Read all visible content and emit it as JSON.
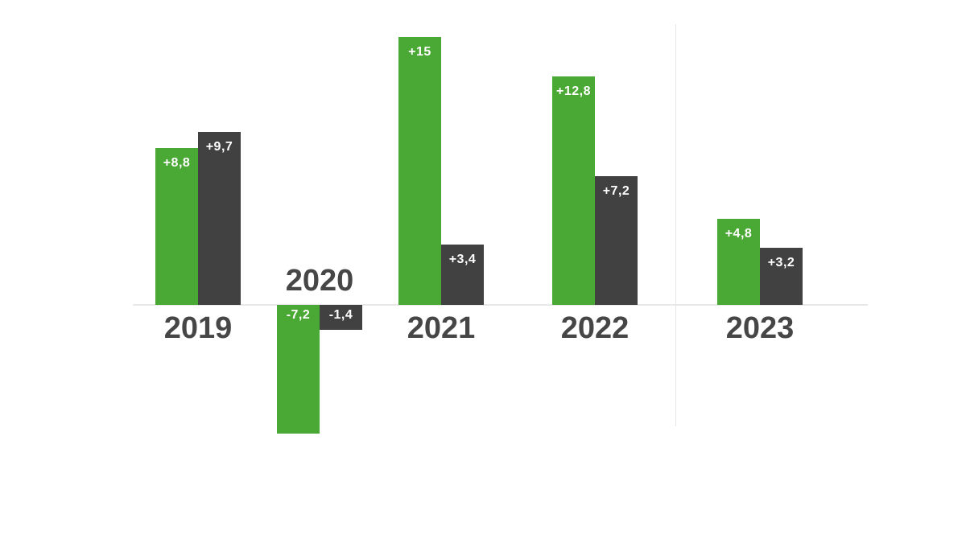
{
  "chart_data": {
    "type": "bar",
    "title": "",
    "xlabel": "",
    "ylabel": "",
    "grid": false,
    "legend": false,
    "categories": [
      "2019",
      "2020",
      "2021",
      "2022",
      "2023"
    ],
    "series": [
      {
        "name": "green-series",
        "color": "#4aa834",
        "values": [
          8.8,
          -7.2,
          15,
          12.8,
          4.8
        ],
        "labels": [
          "+8,8",
          "-7,2",
          "+15",
          "+12,8",
          "+4,8"
        ]
      },
      {
        "name": "dark-series",
        "color": "#414141",
        "values": [
          9.7,
          -1.4,
          3.4,
          7.2,
          3.2
        ],
        "labels": [
          "+9,7",
          "-1,4",
          "+3,4",
          "+7,2",
          "+3,2"
        ]
      }
    ],
    "value_label_color": "#ffffff",
    "category_label_color": "#464646",
    "axis_line_color": "#e8e8e8",
    "separator_line_color": "#e6e6e6",
    "background_color": "#ffffff"
  }
}
